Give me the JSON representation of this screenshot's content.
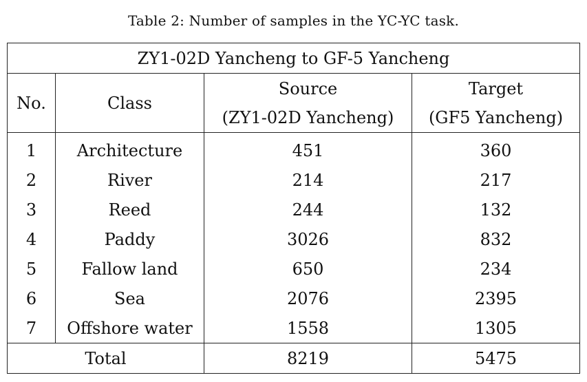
{
  "caption": "Table 2: Number of samples in the YC-YC task.",
  "table": {
    "title": "ZY1-02D Yancheng to GF-5 Yancheng",
    "headers": {
      "no": "No.",
      "class": "Class",
      "source_line1": "Source",
      "source_line2": "(ZY1-02D Yancheng)",
      "target_line1": "Target",
      "target_line2": "(GF5 Yancheng)"
    },
    "rows": [
      {
        "no": "1",
        "class": "Architecture",
        "source": "451",
        "target": "360"
      },
      {
        "no": "2",
        "class": "River",
        "source": "214",
        "target": "217"
      },
      {
        "no": "3",
        "class": "Reed",
        "source": "244",
        "target": "132"
      },
      {
        "no": "4",
        "class": "Paddy",
        "source": "3026",
        "target": "832"
      },
      {
        "no": "5",
        "class": "Fallow land",
        "source": "650",
        "target": "234"
      },
      {
        "no": "6",
        "class": "Sea",
        "source": "2076",
        "target": "2395"
      },
      {
        "no": "7",
        "class": "Offshore water",
        "source": "1558",
        "target": "1305"
      }
    ],
    "total": {
      "label": "Total",
      "source": "8219",
      "target": "5475"
    }
  }
}
